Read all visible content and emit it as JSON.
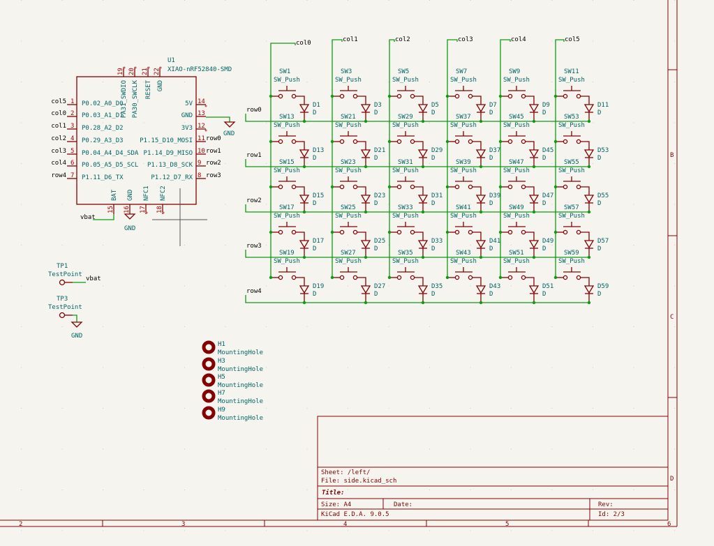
{
  "colors": {
    "background": "#f5f4ef",
    "wire": "#109a10",
    "component": "#840000",
    "reference_text": "#006464",
    "pin_number": "#a90000",
    "net_label": "#000000"
  },
  "matrix": {
    "columns": [
      "col0",
      "col1",
      "col2",
      "col3",
      "col4",
      "col5"
    ],
    "rows": [
      "row0",
      "row1",
      "row2",
      "row3",
      "row4"
    ],
    "switch_value": "SW_Push",
    "diode_value": "D",
    "switches": [
      [
        "SW1",
        "SW3",
        "SW5",
        "SW7",
        "SW9",
        "SW11"
      ],
      [
        "SW13",
        "SW21",
        "SW29",
        "SW37",
        "SW45",
        "SW53"
      ],
      [
        "SW15",
        "SW23",
        "SW31",
        "SW39",
        "SW47",
        "SW55"
      ],
      [
        "SW17",
        "SW25",
        "SW33",
        "SW41",
        "SW49",
        "SW57"
      ],
      [
        "SW19",
        "SW27",
        "SW35",
        "SW43",
        "SW51",
        "SW59"
      ]
    ],
    "diodes": [
      [
        "D1",
        "D3",
        "D5",
        "D7",
        "D9",
        "D11"
      ],
      [
        "D13",
        "D21",
        "D29",
        "D37",
        "D45",
        "D53"
      ],
      [
        "D15",
        "D23",
        "D31",
        "D39",
        "D47",
        "D55"
      ],
      [
        "D17",
        "D25",
        "D33",
        "D41",
        "D49",
        "D57"
      ],
      [
        "D19",
        "D27",
        "D35",
        "D43",
        "D51",
        "D59"
      ]
    ]
  },
  "mcu": {
    "ref": "U1",
    "value": "XIAO-nRF52840-SMD",
    "left_pins": [
      {
        "num": "1",
        "name": "P0.02_A0_D0",
        "net": "col5"
      },
      {
        "num": "2",
        "name": "P0.03_A1_D1",
        "net": "col0"
      },
      {
        "num": "3",
        "name": "P0.28_A2_D2",
        "net": "col1"
      },
      {
        "num": "4",
        "name": "P0.29_A3_D3",
        "net": "col2"
      },
      {
        "num": "5",
        "name": "P0.04_A4_D4_SDA",
        "net": "col3"
      },
      {
        "num": "6",
        "name": "P0.05_A5_D5_SCL",
        "net": "col4"
      },
      {
        "num": "7",
        "name": "P1.11_D6_TX",
        "net": "row4"
      }
    ],
    "right_pins": [
      {
        "num": "14",
        "name": "5V",
        "net": ""
      },
      {
        "num": "13",
        "name": "GND",
        "net": ""
      },
      {
        "num": "12",
        "name": "3V3",
        "net": ""
      },
      {
        "num": "11",
        "name": "P1.15_D10_MOSI",
        "net": "row0"
      },
      {
        "num": "10",
        "name": "P1.14_D9_MISO",
        "net": "row1"
      },
      {
        "num": "9",
        "name": "P1.13_D8_SCK",
        "net": "row2"
      },
      {
        "num": "8",
        "name": "P1.12_D7_RX",
        "net": "row3"
      }
    ],
    "top_pins": [
      {
        "num": "19",
        "name": "PA31_SWDIO"
      },
      {
        "num": "20",
        "name": "PA30_SWCLK"
      },
      {
        "num": "21",
        "name": "RESET"
      },
      {
        "num": "22",
        "name": "GND"
      }
    ],
    "bottom_pins": [
      {
        "num": "15",
        "name": "BAT"
      },
      {
        "num": "16",
        "name": "GND"
      },
      {
        "num": "17",
        "name": "NFC1"
      },
      {
        "num": "18",
        "name": "NFC2"
      }
    ],
    "bat_net": "vbat",
    "gnd_label": "GND"
  },
  "testpoints": [
    {
      "ref": "TP1",
      "value": "TestPoint",
      "net": "vbat"
    },
    {
      "ref": "TP3",
      "value": "TestPoint",
      "net": "GND"
    }
  ],
  "mounting_holes": [
    {
      "ref": "H1",
      "value": "MountingHole"
    },
    {
      "ref": "H3",
      "value": "MountingHole"
    },
    {
      "ref": "H5",
      "value": "MountingHole"
    },
    {
      "ref": "H7",
      "value": "MountingHole"
    },
    {
      "ref": "H9",
      "value": "MountingHole"
    }
  ],
  "border": {
    "columns": [
      "2",
      "3",
      "4",
      "5",
      "6"
    ],
    "rows": [
      "B",
      "C",
      "D"
    ]
  },
  "title_block": {
    "sheet": "Sheet: /left/",
    "file": "File: side.kicad_sch",
    "title": "Title:",
    "size": "Size: A4",
    "date": "Date:",
    "rev": "Rev:",
    "app": "KiCad E.D.A. 9.0.5",
    "id": "Id: 2/3"
  }
}
